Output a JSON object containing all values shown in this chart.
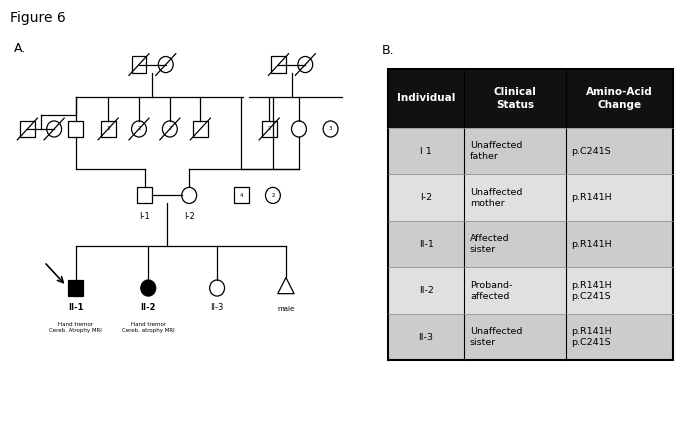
{
  "title": "Figure 6",
  "label_A": "A.",
  "label_B": "B.",
  "background_color": "#ffffff",
  "table_header_bg": "#111111",
  "table_header_fg": "#ffffff",
  "table_row_bg_1": "#cccccc",
  "table_row_bg_2": "#e0e0e0",
  "table_border_color": "#999999",
  "table_headers": [
    "Individual",
    "Clinical\nStatus",
    "Amino-Acid\nChange"
  ],
  "table_rows": [
    [
      "I 1",
      "Unaffected\nfather",
      "p.C241S"
    ],
    [
      "I-2",
      "Unaffected\nmother",
      "p.R141H"
    ],
    [
      "II-1",
      "Affected\nsister",
      "p.R141H"
    ],
    [
      "II-2",
      "Proband-\naffected",
      "p.R141H\np.C241S"
    ],
    [
      "II-3",
      "Unaffected\nsister",
      "p.R141H\np.C241S"
    ]
  ],
  "sym_size": 0.2,
  "lw": 0.9
}
